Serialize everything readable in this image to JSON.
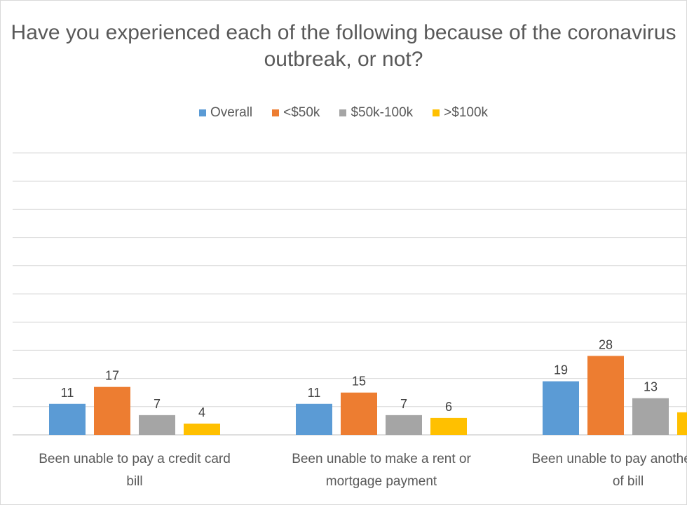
{
  "chart_data": {
    "type": "bar",
    "title": "Have you experienced each of the following because of the coronavirus outbreak, or not?",
    "categories": [
      "Been unable to pay a credit card bill",
      "Been unable to make a rent or mortgage payment",
      "Been unable to pay another type of bill"
    ],
    "category_lines": [
      [
        "Been unable to pay a credit card",
        "bill"
      ],
      [
        "Been unable to make a rent or",
        "mortgage payment"
      ],
      [
        "Been unable to pay another type",
        "of bill"
      ]
    ],
    "series": [
      {
        "name": "Overall",
        "color": "#5b9bd5",
        "values": [
          11,
          11,
          19
        ]
      },
      {
        "name": "<$50k",
        "color": "#ed7d31",
        "values": [
          17,
          15,
          28
        ]
      },
      {
        "name": "$50k-100k",
        "color": "#a5a5a5",
        "values": [
          7,
          7,
          13
        ]
      },
      {
        "name": ">$100k",
        "color": "#ffc000",
        "values": [
          4,
          6,
          8
        ]
      }
    ],
    "ylim": [
      0,
      100
    ],
    "grid": true,
    "legend_position": "top"
  }
}
